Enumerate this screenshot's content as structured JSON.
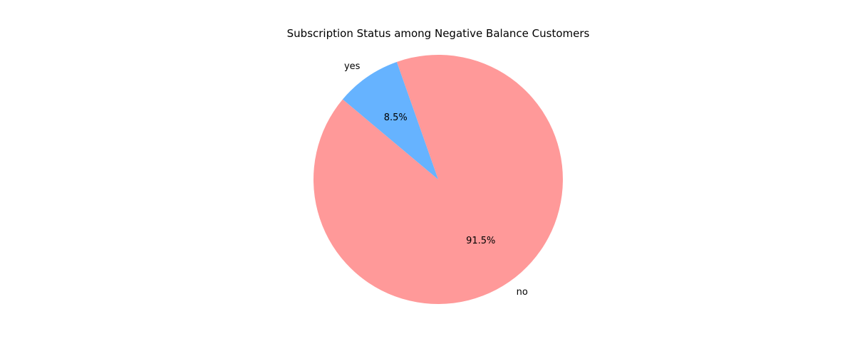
{
  "chart_data": {
    "type": "pie",
    "title": "Subscription Status among Negative Balance Customers",
    "categories": [
      "no",
      "yes"
    ],
    "values": [
      91.5,
      8.5
    ],
    "percent_labels": [
      "91.5%",
      "8.5%"
    ],
    "colors": [
      "#ff9999",
      "#66b3ff"
    ],
    "start_angle_deg": 140,
    "direction": "counterclockwise",
    "legend": "none"
  }
}
